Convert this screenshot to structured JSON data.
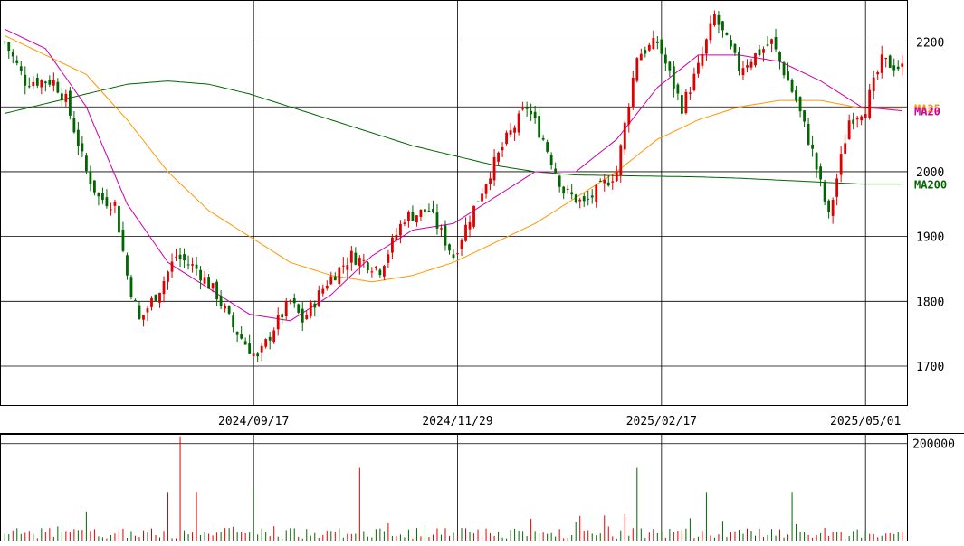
{
  "chart_data": [
    {
      "type": "candlestick",
      "title": "",
      "ylim": [
        1640,
        2265
      ],
      "y_ticks": [
        1700,
        1800,
        1900,
        2000,
        2200
      ],
      "x_tick_labels": [
        "2024/09/17",
        "2024/11/29",
        "2025/02/17",
        "2025/05/01"
      ],
      "grid": true,
      "colors": {
        "up": "#e00000",
        "down": "#006600",
        "ma25": "#ff9900",
        "ma20": "#cc00aa",
        "ma200": "#006600"
      },
      "ma_labels": [
        {
          "name": "MA25",
          "value": 2098,
          "color": "#ff9900"
        },
        {
          "name": "MA20",
          "value": 2094,
          "color": "#cc00aa"
        },
        {
          "name": "MA200",
          "value": 1981,
          "color": "#006600"
        }
      ],
      "close_anchors": [
        [
          0,
          2200
        ],
        [
          5,
          2140
        ],
        [
          12,
          2140
        ],
        [
          15,
          2110
        ],
        [
          20,
          2000
        ],
        [
          23,
          1960
        ],
        [
          27,
          1950
        ],
        [
          30,
          1840
        ],
        [
          33,
          1770
        ],
        [
          38,
          1820
        ],
        [
          42,
          1870
        ],
        [
          47,
          1850
        ],
        [
          52,
          1810
        ],
        [
          56,
          1760
        ],
        [
          62,
          1710
        ],
        [
          66,
          1760
        ],
        [
          70,
          1800
        ],
        [
          73,
          1770
        ],
        [
          79,
          1830
        ],
        [
          85,
          1870
        ],
        [
          92,
          1850
        ],
        [
          98,
          1930
        ],
        [
          104,
          1940
        ],
        [
          110,
          1870
        ],
        [
          114,
          1930
        ],
        [
          119,
          2000
        ],
        [
          123,
          2050
        ],
        [
          128,
          2100
        ],
        [
          132,
          2050
        ],
        [
          137,
          1970
        ],
        [
          142,
          1950
        ],
        [
          150,
          2000
        ],
        [
          155,
          2180
        ],
        [
          160,
          2200
        ],
        [
          166,
          2100
        ],
        [
          170,
          2160
        ],
        [
          174,
          2240
        ],
        [
          180,
          2160
        ],
        [
          188,
          2200
        ],
        [
          194,
          2110
        ],
        [
          198,
          2030
        ],
        [
          202,
          1930
        ],
        [
          207,
          2080
        ],
        [
          211,
          2100
        ],
        [
          215,
          2170
        ],
        [
          220,
          2160
        ]
      ],
      "ma_anchors": {
        "ma25": [
          [
            0,
            2210
          ],
          [
            10,
            2180
          ],
          [
            20,
            2150
          ],
          [
            30,
            2080
          ],
          [
            40,
            2000
          ],
          [
            50,
            1940
          ],
          [
            60,
            1900
          ],
          [
            70,
            1860
          ],
          [
            80,
            1840
          ],
          [
            90,
            1830
          ],
          [
            100,
            1840
          ],
          [
            110,
            1860
          ],
          [
            120,
            1890
          ],
          [
            130,
            1920
          ],
          [
            140,
            1960
          ],
          [
            150,
            2000
          ],
          [
            160,
            2050
          ],
          [
            170,
            2080
          ],
          [
            180,
            2100
          ],
          [
            190,
            2110
          ],
          [
            200,
            2110
          ],
          [
            210,
            2098
          ],
          [
            220,
            2098
          ]
        ],
        "ma20": [
          [
            0,
            2220
          ],
          [
            10,
            2190
          ],
          [
            20,
            2100
          ],
          [
            30,
            1950
          ],
          [
            40,
            1860
          ],
          [
            50,
            1820
          ],
          [
            60,
            1780
          ],
          [
            70,
            1770
          ],
          [
            80,
            1810
          ],
          [
            90,
            1870
          ],
          [
            100,
            1910
          ],
          [
            110,
            1920
          ],
          [
            120,
            1960
          ],
          [
            130,
            2000
          ],
          [
            140,
            2000
          ],
          [
            150,
            2050
          ],
          [
            160,
            2130
          ],
          [
            170,
            2180
          ],
          [
            180,
            2180
          ],
          [
            190,
            2170
          ],
          [
            200,
            2140
          ],
          [
            210,
            2100
          ],
          [
            220,
            2094
          ]
        ],
        "ma200": [
          [
            0,
            2090
          ],
          [
            10,
            2105
          ],
          [
            20,
            2120
          ],
          [
            30,
            2135
          ],
          [
            40,
            2140
          ],
          [
            50,
            2135
          ],
          [
            60,
            2120
          ],
          [
            70,
            2100
          ],
          [
            80,
            2080
          ],
          [
            90,
            2060
          ],
          [
            100,
            2040
          ],
          [
            110,
            2025
          ],
          [
            120,
            2010
          ],
          [
            130,
            2000
          ],
          [
            140,
            1995
          ],
          [
            150,
            1994
          ],
          [
            160,
            1993
          ],
          [
            170,
            1992
          ],
          [
            180,
            1990
          ],
          [
            190,
            1987
          ],
          [
            200,
            1984
          ],
          [
            210,
            1981
          ],
          [
            220,
            1981
          ]
        ]
      }
    },
    {
      "type": "bar",
      "title": "",
      "ylim": [
        0,
        220000
      ],
      "y_ticks": [
        200000
      ],
      "y_tick_labels": [
        "200000"
      ],
      "grid": true,
      "spikes": [
        [
          20,
          60000
        ],
        [
          40,
          100000
        ],
        [
          43,
          215000
        ],
        [
          47,
          100000
        ],
        [
          61,
          110000
        ],
        [
          87,
          150000
        ],
        [
          155,
          150000
        ],
        [
          172,
          100000
        ],
        [
          193,
          100000
        ]
      ]
    }
  ]
}
